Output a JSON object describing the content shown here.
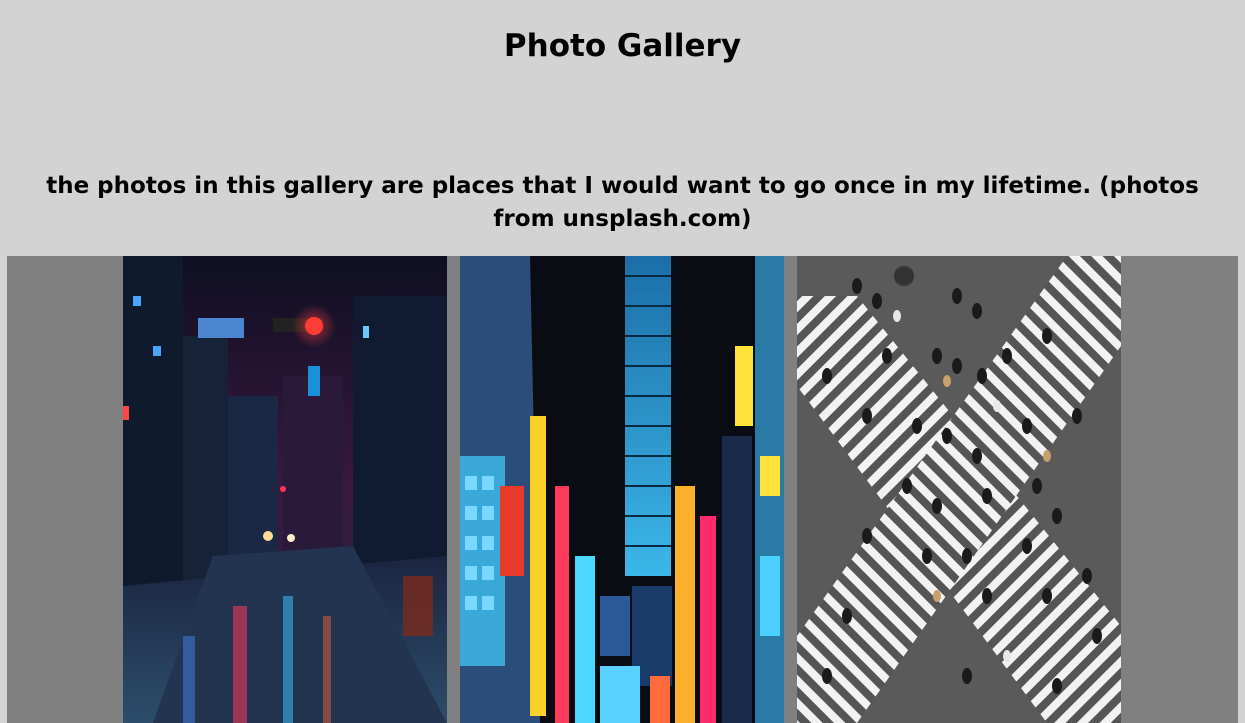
{
  "header": {
    "title": "Photo Gallery"
  },
  "intro": {
    "text": "the photos in this gallery are places that I would want to go once in my lifetime. (photos from unsplash.com)"
  },
  "gallery": {
    "photos": [
      {
        "name": "rainy-night-street-photo"
      },
      {
        "name": "neon-city-buildings-photo"
      },
      {
        "name": "crosswalk-crowd-photo"
      }
    ]
  }
}
